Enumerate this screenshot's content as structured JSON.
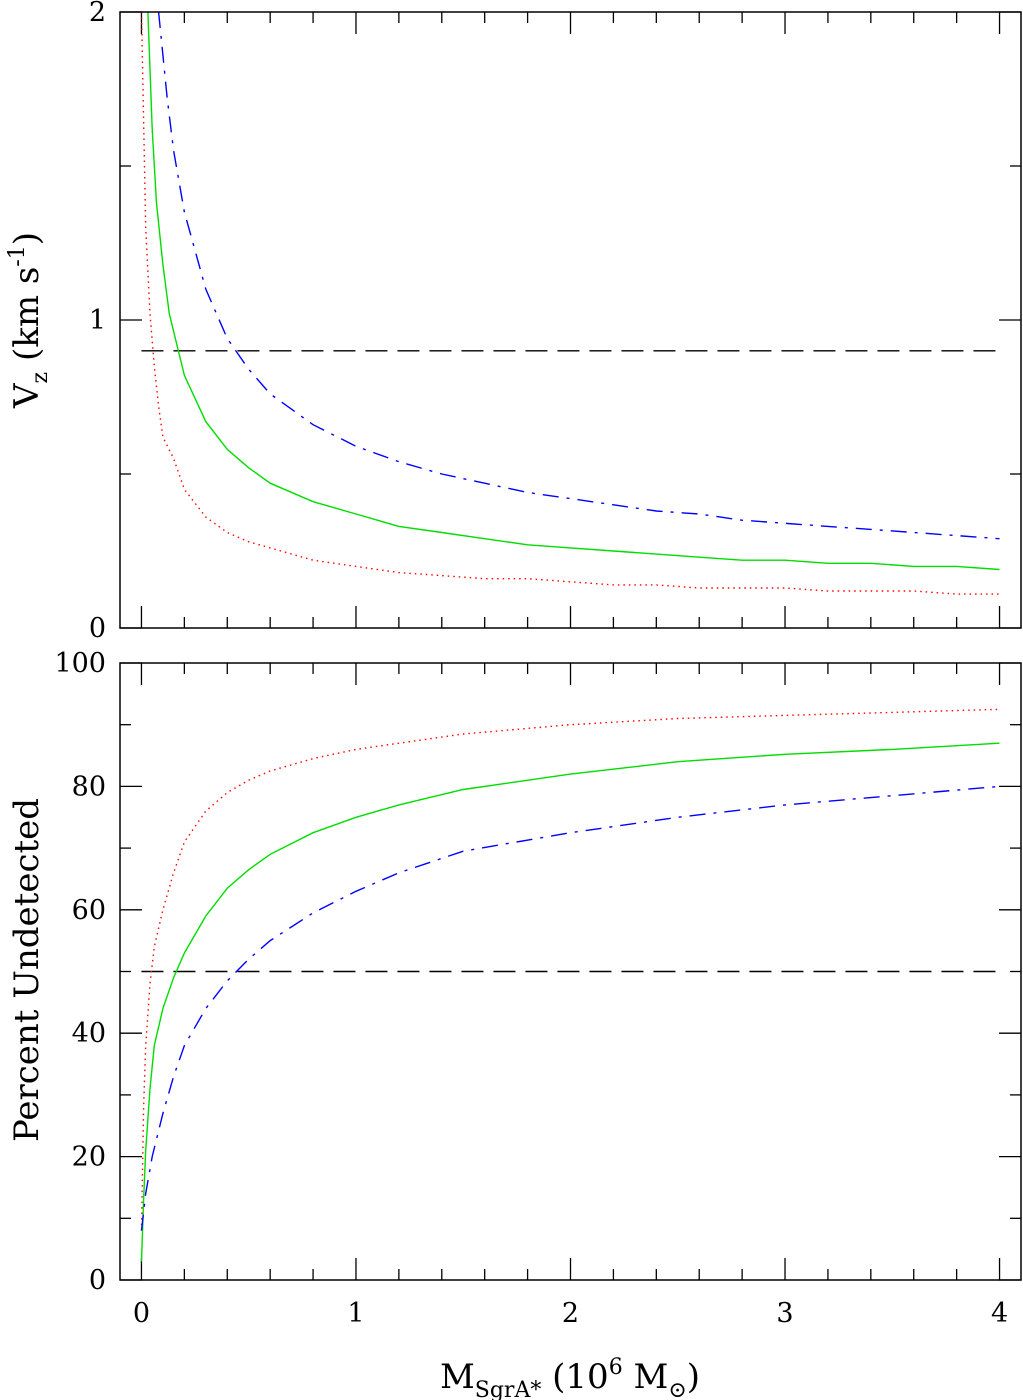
{
  "chart_data": [
    {
      "type": "line",
      "ylabel": {
        "main": "V",
        "sub": "z",
        "units": "(km s",
        "sup": "-1",
        "close": ")"
      },
      "xlim": [
        -0.1,
        4.1
      ],
      "ylim": [
        0,
        2
      ],
      "yticks": [
        0,
        1,
        2
      ],
      "ytick_labels": [
        "0",
        "1",
        "2"
      ],
      "xticks": [
        0,
        1,
        2,
        3,
        4
      ],
      "grid": false,
      "reference_line": {
        "y": 0.9,
        "style": "dashed",
        "color": "#000000"
      },
      "series": [
        {
          "color": "#ff0000",
          "style": "dotted",
          "x": [
            0.0,
            0.02,
            0.04,
            0.06,
            0.08,
            0.1,
            0.15,
            0.2,
            0.3,
            0.4,
            0.5,
            0.6,
            0.8,
            1.0,
            1.2,
            1.4,
            1.6,
            1.8,
            2.0,
            2.2,
            2.4,
            2.6,
            2.8,
            3.0,
            3.2,
            3.4,
            3.6,
            3.8,
            4.0
          ],
          "y": [
            2.0,
            1.3,
            1.02,
            0.85,
            0.72,
            0.62,
            0.55,
            0.45,
            0.36,
            0.31,
            0.28,
            0.26,
            0.22,
            0.2,
            0.18,
            0.17,
            0.16,
            0.16,
            0.15,
            0.14,
            0.14,
            0.13,
            0.13,
            0.13,
            0.12,
            0.12,
            0.12,
            0.11,
            0.11
          ]
        },
        {
          "color": "#00dd00",
          "style": "solid",
          "x": [
            0.03,
            0.05,
            0.07,
            0.1,
            0.13,
            0.2,
            0.3,
            0.4,
            0.5,
            0.6,
            0.8,
            1.0,
            1.2,
            1.4,
            1.6,
            1.8,
            2.0,
            2.2,
            2.4,
            2.6,
            2.8,
            3.0,
            3.2,
            3.4,
            3.6,
            3.8,
            4.0
          ],
          "y": [
            2.0,
            1.62,
            1.38,
            1.18,
            1.02,
            0.82,
            0.67,
            0.58,
            0.52,
            0.47,
            0.41,
            0.37,
            0.33,
            0.31,
            0.29,
            0.27,
            0.26,
            0.25,
            0.24,
            0.23,
            0.22,
            0.22,
            0.21,
            0.21,
            0.2,
            0.2,
            0.19
          ]
        },
        {
          "color": "#0000ff",
          "style": "dashdot",
          "x": [
            0.08,
            0.12,
            0.15,
            0.2,
            0.3,
            0.4,
            0.5,
            0.6,
            0.8,
            1.0,
            1.2,
            1.4,
            1.6,
            1.8,
            2.0,
            2.2,
            2.4,
            2.6,
            2.8,
            3.0,
            3.2,
            3.4,
            3.6,
            3.8,
            4.0
          ],
          "y": [
            2.0,
            1.72,
            1.55,
            1.35,
            1.1,
            0.94,
            0.84,
            0.76,
            0.66,
            0.59,
            0.54,
            0.5,
            0.47,
            0.44,
            0.42,
            0.4,
            0.38,
            0.37,
            0.35,
            0.34,
            0.33,
            0.32,
            0.31,
            0.3,
            0.29
          ]
        }
      ]
    },
    {
      "type": "line",
      "ylabel": "Percent Undetected",
      "xlabel": {
        "main": "M",
        "sub": "SgrA*",
        "units": "(10",
        "sup": "6",
        "unit2": "M",
        "sun": "⊙",
        "close": ")"
      },
      "xlim": [
        -0.1,
        4.1
      ],
      "ylim": [
        0,
        100
      ],
      "yticks": [
        0,
        20,
        40,
        60,
        80,
        100
      ],
      "ytick_labels": [
        "0",
        "20",
        "40",
        "60",
        "80",
        "100"
      ],
      "xticks": [
        0,
        1,
        2,
        3,
        4
      ],
      "xtick_labels": [
        "0",
        "1",
        "2",
        "3",
        "4"
      ],
      "grid": false,
      "reference_line": {
        "y": 50,
        "style": "dashed",
        "color": "#000000"
      },
      "series": [
        {
          "color": "#ff0000",
          "style": "dotted",
          "x": [
            0.0,
            0.01,
            0.02,
            0.04,
            0.06,
            0.1,
            0.15,
            0.2,
            0.3,
            0.4,
            0.5,
            0.6,
            0.8,
            1.0,
            1.2,
            1.5,
            2.0,
            2.5,
            3.0,
            3.5,
            4.0
          ],
          "y": [
            8,
            28,
            38,
            48,
            54,
            60,
            66,
            71,
            76,
            79,
            81,
            82.5,
            84.5,
            86,
            87,
            88.5,
            90,
            91,
            91.5,
            92,
            92.5
          ]
        },
        {
          "color": "#00dd00",
          "style": "solid",
          "x": [
            0.0,
            0.01,
            0.02,
            0.04,
            0.06,
            0.1,
            0.15,
            0.2,
            0.3,
            0.4,
            0.5,
            0.6,
            0.8,
            1.0,
            1.2,
            1.5,
            2.0,
            2.5,
            3.0,
            3.5,
            4.0
          ],
          "y": [
            3,
            13,
            21,
            31,
            38,
            44,
            49,
            53,
            59,
            63.5,
            66.5,
            69,
            72.5,
            75,
            77,
            79.5,
            82,
            84,
            85.2,
            86,
            87
          ]
        },
        {
          "color": "#0000ff",
          "style": "dashdot",
          "x": [
            0.0,
            0.02,
            0.05,
            0.1,
            0.15,
            0.2,
            0.3,
            0.4,
            0.5,
            0.6,
            0.8,
            1.0,
            1.2,
            1.5,
            2.0,
            2.5,
            3.0,
            3.5,
            4.0
          ],
          "y": [
            8,
            14,
            20,
            27,
            33,
            38,
            44,
            48.5,
            52,
            55,
            59.5,
            63,
            66,
            69.5,
            72.5,
            75,
            77,
            78.5,
            80
          ]
        }
      ]
    }
  ]
}
